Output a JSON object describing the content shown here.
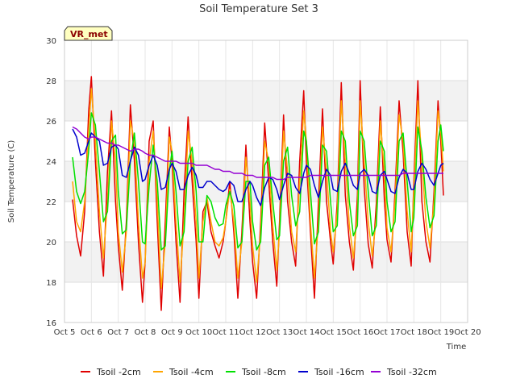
{
  "chart_data": {
    "type": "line",
    "title": "Soil Temperature Set 3",
    "xlabel": "Time",
    "ylabel": "Soil Temperature (C)",
    "station_tag": "VR_met",
    "xlim": [
      5,
      20
    ],
    "ylim": [
      16,
      30
    ],
    "x_ticks": [
      5,
      6,
      7,
      8,
      9,
      10,
      11,
      12,
      13,
      14,
      15,
      16,
      17,
      18,
      19,
      20
    ],
    "x_tick_labels": [
      "Oct 5",
      "Oct 6",
      "Oct 7",
      "Oct 8",
      "Oct 9",
      "Oct 10",
      "Oct 11",
      "Oct 12",
      "Oct 13",
      "Oct 14",
      "Oct 15",
      "Oct 16",
      "Oct 17",
      "Oct 18",
      "Oct 19",
      "Oct 20"
    ],
    "y_ticks": [
      16,
      18,
      20,
      22,
      24,
      26,
      28,
      30
    ],
    "y_tick_labels": [
      "16",
      "18",
      "20",
      "22",
      "24",
      "26",
      "28",
      "30"
    ],
    "grid": true,
    "legend_position": "bottom",
    "x": [
      5.3,
      5.45,
      5.6,
      5.75,
      5.9,
      6.0,
      6.15,
      6.3,
      6.45,
      6.6,
      6.75,
      6.9,
      7.0,
      7.15,
      7.3,
      7.45,
      7.6,
      7.75,
      7.9,
      8.0,
      8.15,
      8.3,
      8.45,
      8.6,
      8.75,
      8.9,
      9.0,
      9.15,
      9.3,
      9.45,
      9.6,
      9.75,
      9.9,
      10.0,
      10.15,
      10.3,
      10.45,
      10.6,
      10.75,
      10.9,
      11.0,
      11.15,
      11.3,
      11.45,
      11.6,
      11.75,
      11.9,
      12.0,
      12.15,
      12.3,
      12.45,
      12.6,
      12.75,
      12.9,
      13.0,
      13.15,
      13.3,
      13.45,
      13.6,
      13.75,
      13.9,
      14.0,
      14.15,
      14.3,
      14.45,
      14.6,
      14.75,
      14.9,
      15.0,
      15.15,
      15.3,
      15.45,
      15.6,
      15.75,
      15.9,
      16.0,
      16.15,
      16.3,
      16.45,
      16.6,
      16.75,
      16.9,
      17.0,
      17.15,
      17.3,
      17.45,
      17.6,
      17.75,
      17.9,
      18.0,
      18.15,
      18.3,
      18.45,
      18.6,
      18.75,
      18.9,
      19.0,
      19.1
    ],
    "series": [
      {
        "name": "Tsoil -2cm",
        "color": "#e00000",
        "values": [
          22.1,
          20.3,
          19.3,
          21.5,
          26.5,
          28.2,
          24.0,
          20.5,
          18.3,
          23.5,
          26.5,
          22.0,
          19.8,
          17.6,
          21.0,
          26.8,
          24.0,
          20.0,
          17.0,
          19.0,
          25.0,
          26.0,
          21.0,
          16.6,
          21.0,
          25.7,
          24.0,
          20.0,
          17.0,
          22.5,
          26.2,
          23.0,
          20.0,
          17.2,
          21.5,
          22.0,
          20.5,
          19.8,
          19.2,
          20.0,
          21.0,
          23.0,
          20.5,
          17.2,
          20.5,
          24.8,
          21.0,
          19.0,
          17.2,
          21.0,
          25.9,
          23.0,
          20.0,
          17.8,
          21.0,
          26.3,
          22.0,
          20.0,
          18.8,
          24.0,
          27.5,
          24.0,
          20.5,
          17.2,
          22.0,
          26.6,
          22.0,
          20.0,
          18.9,
          22.0,
          27.9,
          22.3,
          20.0,
          18.6,
          22.3,
          28.0,
          22.7,
          19.9,
          18.7,
          21.9,
          26.7,
          22.1,
          20.1,
          19.0,
          22.5,
          27.0,
          24.4,
          20.5,
          18.8,
          23.0,
          28.0,
          22.0,
          20.0,
          19.0,
          22.5,
          27.0,
          25.0,
          22.3
        ]
      },
      {
        "name": "Tsoil -4cm",
        "color": "#ffa500",
        "values": [
          23.0,
          21.0,
          20.5,
          22.0,
          25.5,
          27.6,
          25.0,
          21.5,
          19.2,
          22.0,
          26.0,
          24.0,
          20.5,
          18.5,
          20.5,
          26.0,
          25.0,
          21.0,
          18.2,
          19.0,
          24.0,
          25.5,
          22.0,
          17.7,
          20.0,
          25.2,
          24.5,
          21.0,
          18.0,
          21.0,
          25.5,
          24.0,
          21.0,
          18.2,
          21.0,
          22.2,
          21.0,
          20.0,
          19.8,
          20.2,
          21.0,
          22.6,
          21.0,
          18.2,
          20.0,
          24.2,
          22.0,
          19.8,
          18.0,
          20.5,
          25.0,
          24.0,
          20.8,
          18.6,
          20.5,
          25.5,
          23.5,
          20.5,
          19.5,
          23.0,
          26.5,
          25.0,
          21.0,
          18.2,
          21.0,
          25.7,
          23.5,
          20.5,
          19.5,
          21.5,
          27.0,
          24.0,
          20.8,
          19.2,
          21.5,
          27.0,
          24.0,
          21.0,
          19.3,
          21.2,
          26.0,
          23.5,
          20.7,
          19.5,
          22.0,
          26.3,
          25.0,
          21.5,
          19.5,
          22.5,
          27.0,
          24.0,
          21.0,
          19.7,
          22.0,
          26.5,
          25.5,
          23.5
        ]
      },
      {
        "name": "Tsoil -8cm",
        "color": "#00e000",
        "values": [
          24.2,
          22.5,
          21.9,
          22.5,
          24.5,
          26.4,
          25.8,
          23.5,
          21.0,
          21.5,
          25.0,
          25.3,
          22.5,
          20.4,
          20.6,
          24.0,
          25.4,
          23.0,
          20.0,
          19.9,
          22.8,
          24.8,
          23.0,
          19.6,
          19.8,
          23.5,
          24.5,
          22.5,
          19.8,
          20.5,
          24.0,
          24.7,
          22.5,
          20.0,
          20.0,
          22.3,
          22.0,
          21.2,
          20.8,
          20.9,
          21.8,
          22.5,
          21.8,
          19.7,
          20.0,
          23.0,
          23.0,
          21.0,
          19.6,
          20.0,
          23.8,
          24.2,
          22.0,
          20.1,
          20.3,
          24.0,
          24.7,
          22.3,
          20.8,
          21.5,
          25.5,
          25.0,
          22.5,
          19.9,
          20.5,
          24.8,
          24.5,
          22.0,
          20.5,
          20.8,
          25.5,
          25.0,
          22.0,
          20.3,
          20.8,
          25.5,
          25.0,
          22.5,
          20.3,
          20.8,
          25.0,
          24.5,
          22.0,
          20.5,
          21.0,
          25.0,
          25.4,
          23.0,
          20.5,
          21.2,
          25.7,
          24.5,
          22.2,
          20.7,
          21.3,
          25.0,
          25.8,
          24.5
        ]
      },
      {
        "name": "Tsoil -16cm",
        "color": "#0000cd",
        "values": [
          25.6,
          25.2,
          24.3,
          24.4,
          25.0,
          25.4,
          25.2,
          25.0,
          23.8,
          23.9,
          24.7,
          24.8,
          24.6,
          23.3,
          23.2,
          24.0,
          24.7,
          24.3,
          23.0,
          23.1,
          23.8,
          24.3,
          23.8,
          22.6,
          22.7,
          23.6,
          23.9,
          23.5,
          22.6,
          22.6,
          23.3,
          23.7,
          23.3,
          22.7,
          22.7,
          23.0,
          23.0,
          22.8,
          22.6,
          22.5,
          22.6,
          23.0,
          22.8,
          22.0,
          22.0,
          22.6,
          23.0,
          22.8,
          22.2,
          21.8,
          22.7,
          23.2,
          23.1,
          22.6,
          22.1,
          22.8,
          23.4,
          23.3,
          22.7,
          22.4,
          23.4,
          23.8,
          23.6,
          22.8,
          22.2,
          23.0,
          23.6,
          23.3,
          22.6,
          22.5,
          23.5,
          23.9,
          23.4,
          22.8,
          22.6,
          23.4,
          23.6,
          23.3,
          22.5,
          22.4,
          23.3,
          23.5,
          23.1,
          22.5,
          22.4,
          23.2,
          23.6,
          23.4,
          22.6,
          22.6,
          23.5,
          23.9,
          23.6,
          23.1,
          22.8,
          23.4,
          23.8,
          23.9
        ]
      },
      {
        "name": "Tsoil -32cm",
        "color": "#9400d3",
        "values": [
          25.7,
          25.6,
          25.4,
          25.2,
          25.1,
          25.2,
          25.2,
          25.1,
          25.0,
          24.9,
          24.9,
          24.8,
          24.8,
          24.7,
          24.6,
          24.5,
          24.6,
          24.6,
          24.5,
          24.4,
          24.3,
          24.3,
          24.2,
          24.1,
          24.0,
          24.0,
          24.0,
          24.0,
          23.9,
          23.9,
          23.9,
          23.9,
          23.8,
          23.8,
          23.8,
          23.8,
          23.7,
          23.6,
          23.6,
          23.5,
          23.5,
          23.5,
          23.4,
          23.4,
          23.4,
          23.3,
          23.3,
          23.3,
          23.2,
          23.2,
          23.2,
          23.2,
          23.2,
          23.1,
          23.1,
          23.1,
          23.2,
          23.2,
          23.2,
          23.2,
          23.2,
          23.2,
          23.3,
          23.3,
          23.3,
          23.3,
          23.3,
          23.3,
          23.3,
          23.3,
          23.3,
          23.3,
          23.3,
          23.3,
          23.3,
          23.3,
          23.3,
          23.3,
          23.3,
          23.3,
          23.3,
          23.3,
          23.3,
          23.3,
          23.3,
          23.3,
          23.4,
          23.4,
          23.4,
          23.4,
          23.4,
          23.4,
          23.4,
          23.4,
          23.4,
          23.4,
          23.4,
          23.4
        ]
      }
    ]
  }
}
